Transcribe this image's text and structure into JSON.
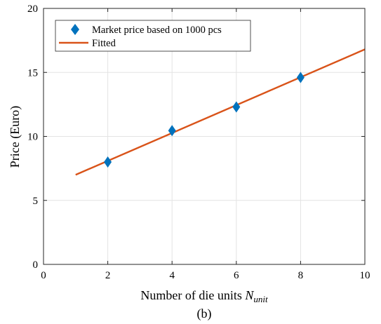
{
  "chart_data": {
    "type": "scatter",
    "caption": "(b)",
    "xlabel": "Number of die units ",
    "xlabel_math": "N",
    "xlabel_sub": "unit",
    "ylabel": "Price (Euro)",
    "xlim": [
      0,
      10
    ],
    "ylim": [
      0,
      20
    ],
    "xticks": [
      0,
      2,
      4,
      6,
      8,
      10
    ],
    "yticks": [
      0,
      5,
      10,
      15,
      20
    ],
    "grid": true,
    "legend_position": "top-left",
    "series": [
      {
        "name": "Market price based on 1000 pcs",
        "kind": "marker",
        "marker": "diamond",
        "color": "#0072BD",
        "x": [
          2,
          4,
          6,
          8
        ],
        "y": [
          8.0,
          10.45,
          12.3,
          14.6
        ]
      },
      {
        "name": "Fitted",
        "kind": "line",
        "color": "#D95319",
        "x": [
          1,
          10
        ],
        "y": [
          7.0,
          16.8
        ]
      }
    ]
  }
}
